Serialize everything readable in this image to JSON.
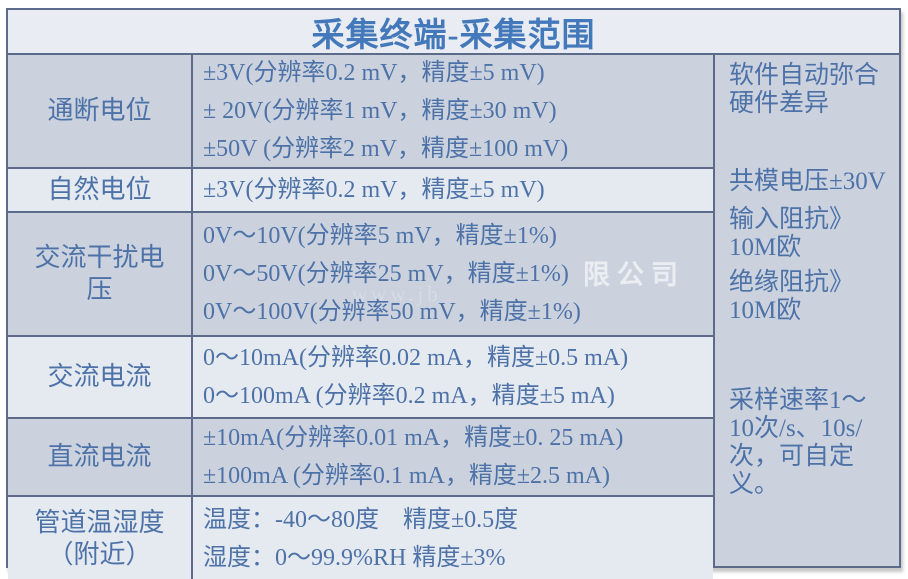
{
  "title": "采集终端-采集范围",
  "table": {
    "rows": [
      {
        "label": "通断电位",
        "lines": [
          "±3V(分辨率0.2 mV，精度±5 mV)",
          "± 20V(分辨率1 mV，精度±30 mV)",
          "±50V (分辨率2 mV，精度±100 mV)"
        ]
      },
      {
        "label": "自然电位",
        "lines": [
          "±3V(分辨率0.2 mV，精度±5 mV)"
        ]
      },
      {
        "label": "交流干扰电压",
        "lines": [
          "0V～10V(分辨率5 mV，精度±1%)",
          "0V～50V(分辨率25 mV，精度±1%)",
          "0V～100V(分辨率50 mV，精度±1%)"
        ]
      },
      {
        "label": "交流电流",
        "lines": [
          "0～10mA(分辨率0.02 mA，精度±0.5 mA)",
          "0～100mA (分辨率0.2 mA，精度±5 mA)"
        ]
      },
      {
        "label": "直流电流",
        "lines": [
          "±10mA(分辨率0.01 mA，精度±0. 25 mA)",
          "±100mA (分辨率0.1 mA，精度±2.5 mA)"
        ]
      },
      {
        "label": "管道温湿度（附近）",
        "lines": [
          "温度：-40～80度　精度±0.5度",
          "湿度：0～99.9%RH 精度±3%"
        ]
      }
    ]
  },
  "side_notes": {
    "note1": "软件自动弥合硬件差异",
    "note2": "共模电压±30V",
    "note3": "输入阻抗》10M欧",
    "note4": "绝缘阻抗》10M欧",
    "note5": "采样速率1～10次/s、10s/次，可自定义。"
  },
  "watermark": {
    "text1": "限公司",
    "text2": "www.jb"
  },
  "colors": {
    "title_text": "#4379bb",
    "body_text": "#4d72a8",
    "border": "#5c6b8a",
    "dark_row_bg": "#cbd2de",
    "light_row_bg": "#e5e9f0",
    "title_row_bg": "#e9ecf2"
  }
}
